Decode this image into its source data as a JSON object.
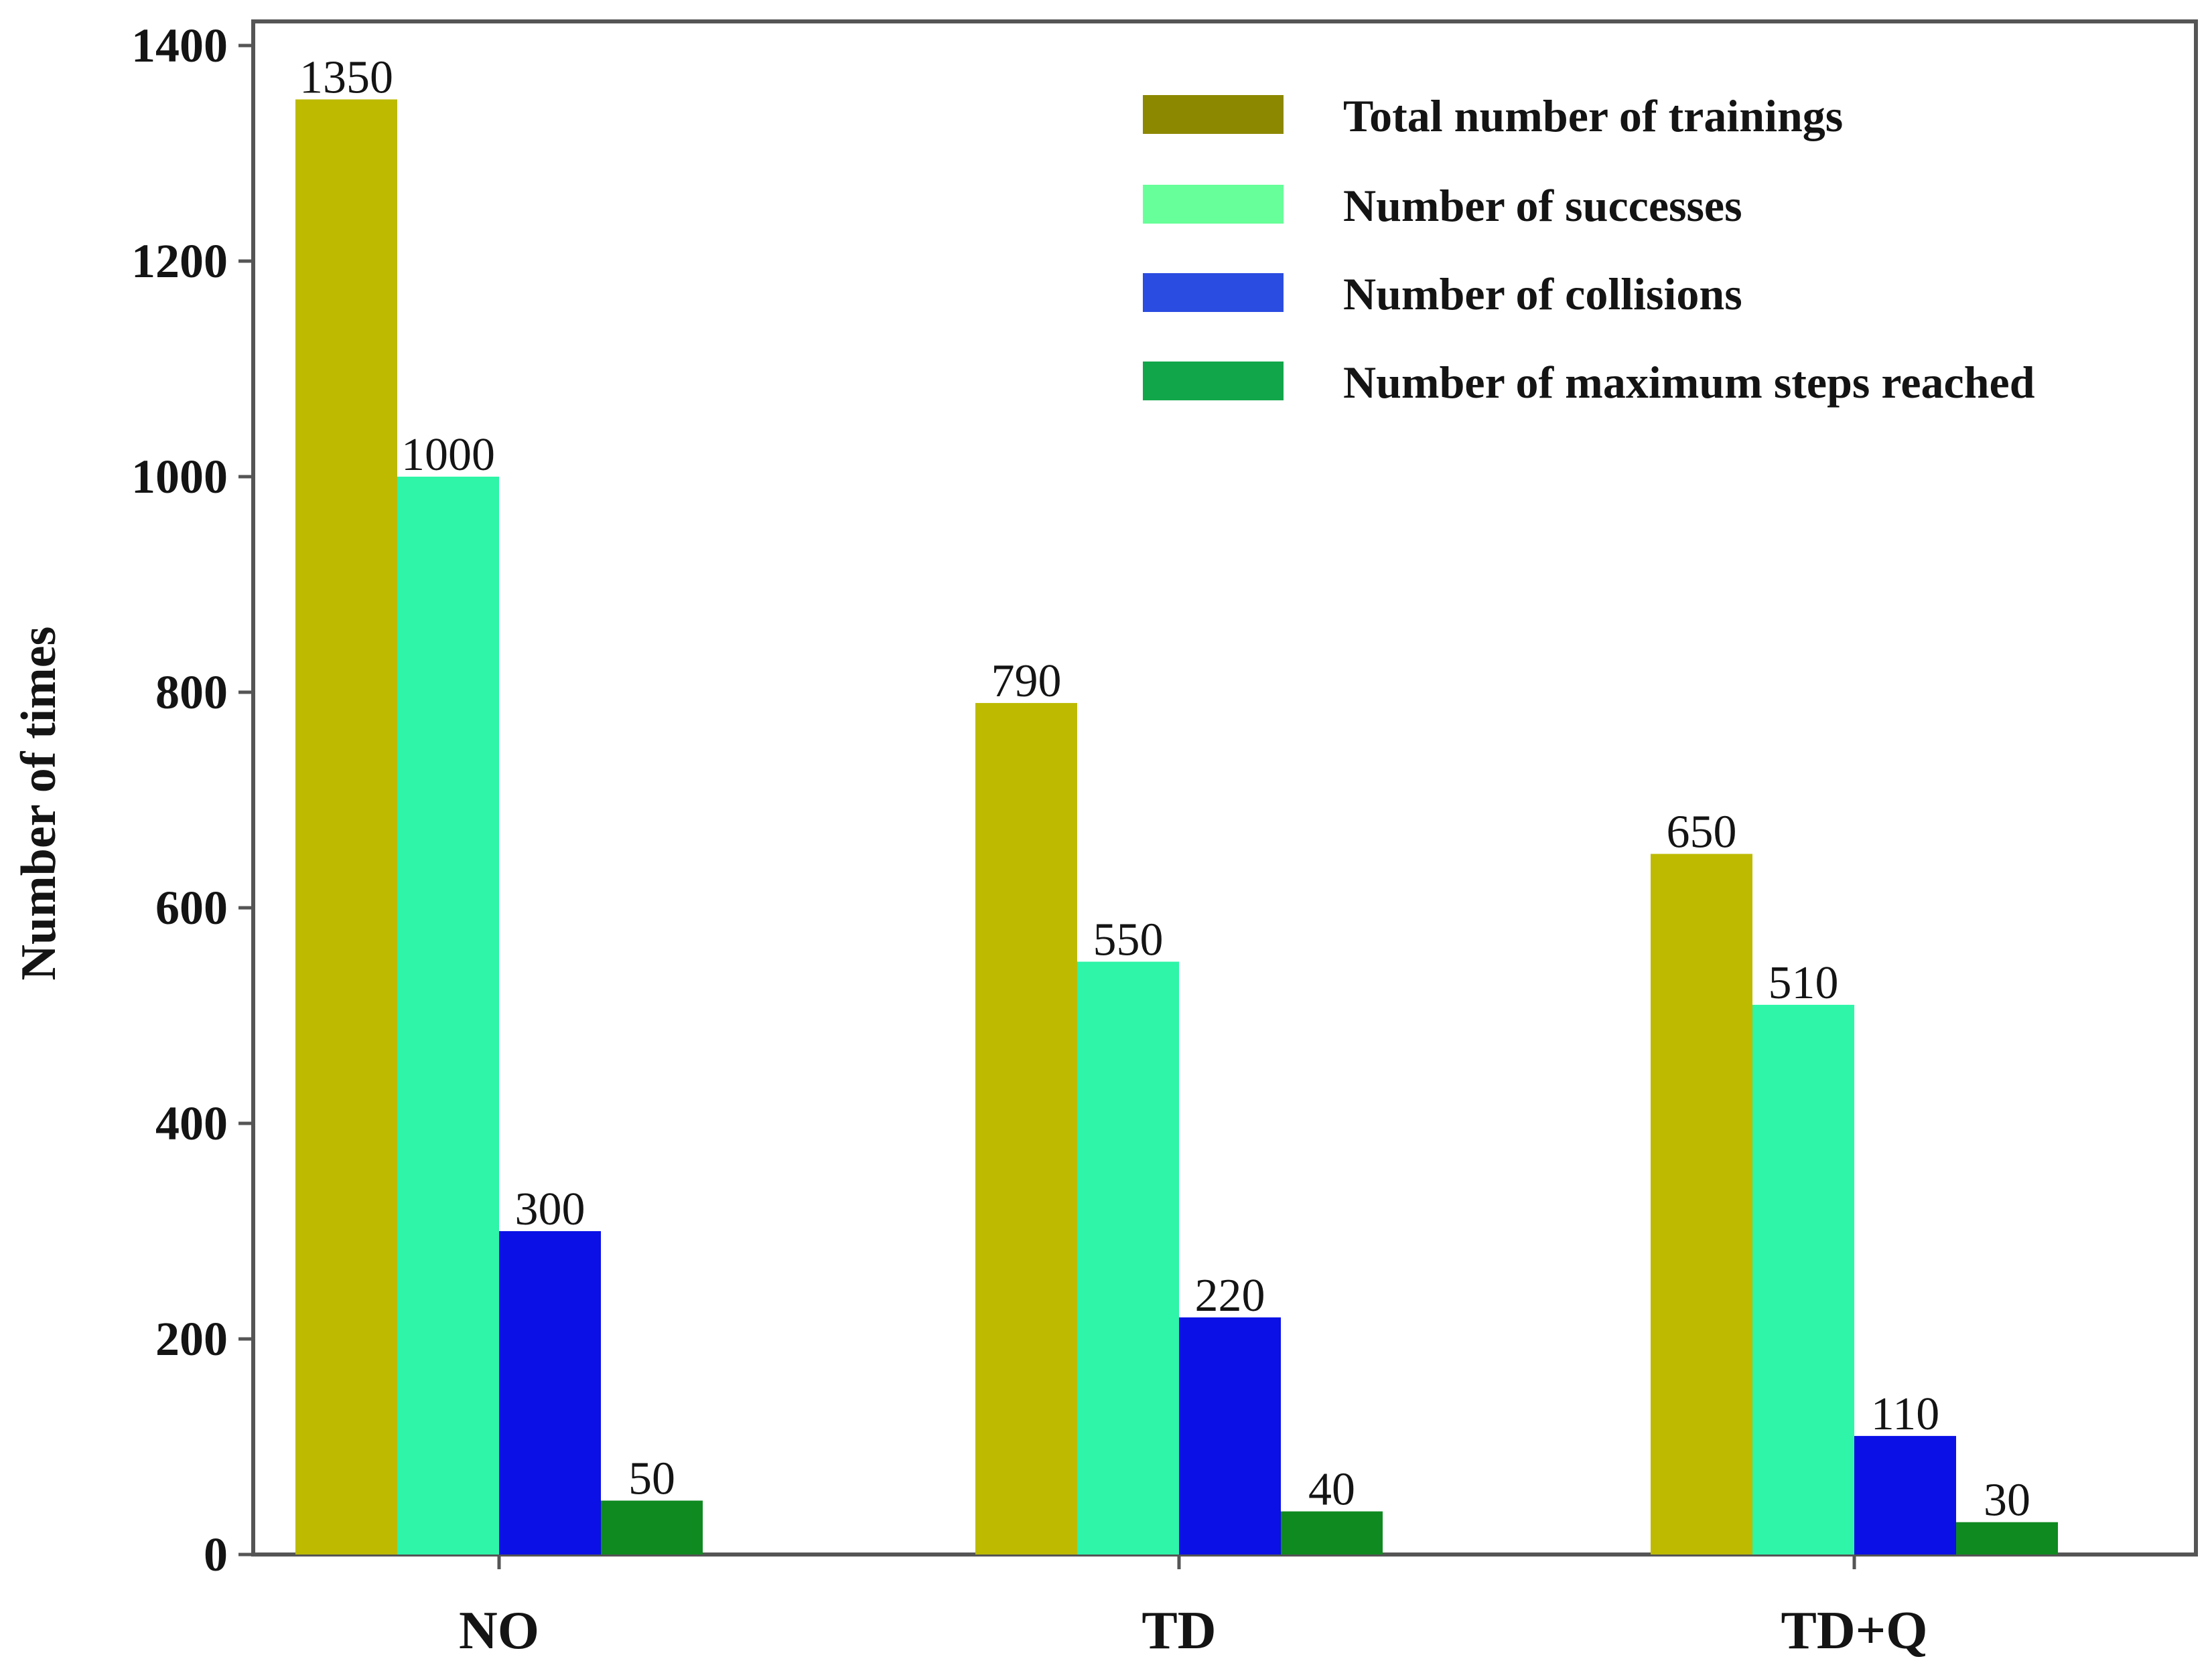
{
  "chart_data": {
    "type": "bar",
    "title": "",
    "xlabel": "",
    "ylabel": "Number of times",
    "ylim": [
      0,
      1400
    ],
    "yticks": [
      0,
      200,
      400,
      600,
      800,
      1000,
      1200,
      1400
    ],
    "grid": false,
    "legend_position": "top-right",
    "categories": [
      "NO",
      "TD",
      "TD+Q"
    ],
    "series": [
      {
        "name": "Total number of trainings",
        "color": "#BDBA00",
        "values": [
          1350,
          790,
          650
        ]
      },
      {
        "name": "Number of successes",
        "color": "#2EF5A8",
        "values": [
          1000,
          550,
          510
        ]
      },
      {
        "name": "Number of collisions",
        "color": "#0A10E6",
        "values": [
          300,
          220,
          110
        ]
      },
      {
        "name": "Number of maximum steps reached",
        "color": "#0E8A20",
        "values": [
          50,
          40,
          30
        ]
      }
    ],
    "legend_colors": [
      "#8C8800",
      "#66FF99",
      "#2B4CE0",
      "#12A64A"
    ]
  }
}
